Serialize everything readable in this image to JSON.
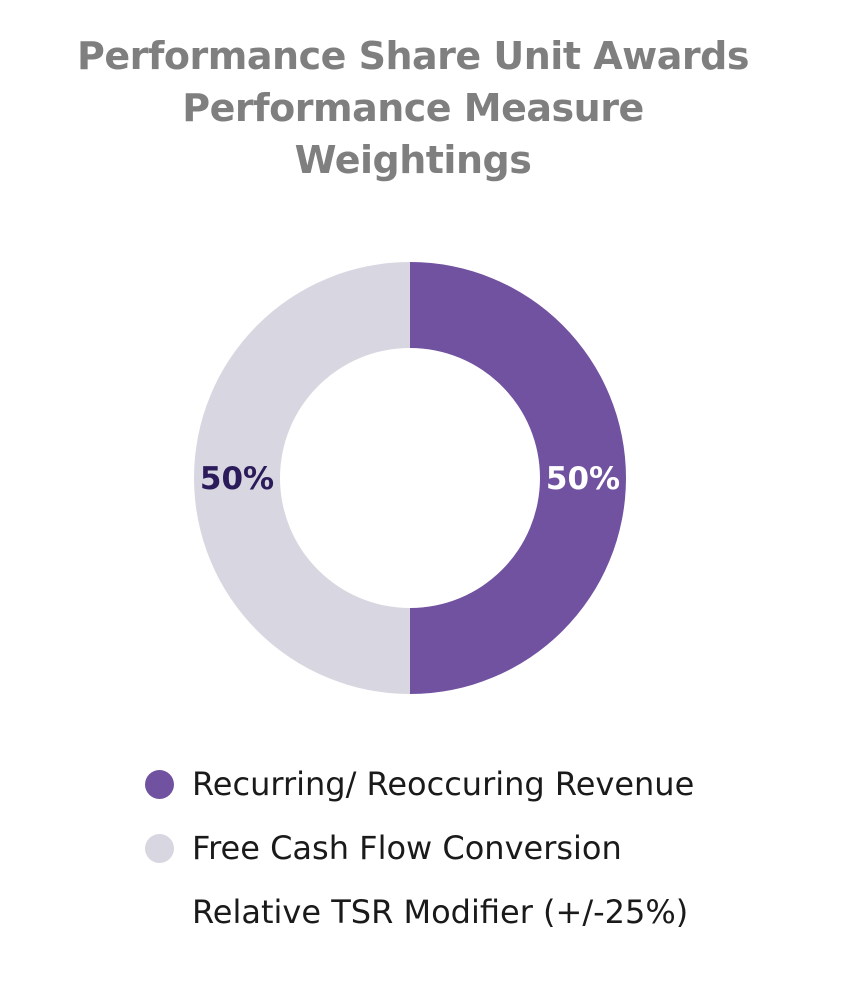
{
  "chart_data": {
    "type": "pie",
    "variant": "donut",
    "title": [
      "Performance Share Unit Awards",
      "Performance Measure",
      "Weightings"
    ],
    "slices": [
      {
        "label": "Recurring/ Reoccuring Revenue",
        "value": 50,
        "display": "50%",
        "color": "#7152a0",
        "label_color": "#ffffff"
      },
      {
        "label": "Free Cash Flow Conversion",
        "value": 50,
        "display": "50%",
        "color": "#d8d6e0",
        "label_color": "#2b1b5a"
      }
    ],
    "legend": {
      "placement": "bottom",
      "items": [
        {
          "label": "Recurring/ Reoccuring Revenue",
          "color": "#7152a0"
        },
        {
          "label": "Free Cash Flow Conversion",
          "color": "#d8d6e0"
        }
      ],
      "note": "Relative TSR Modifier (+/-25%)"
    }
  }
}
